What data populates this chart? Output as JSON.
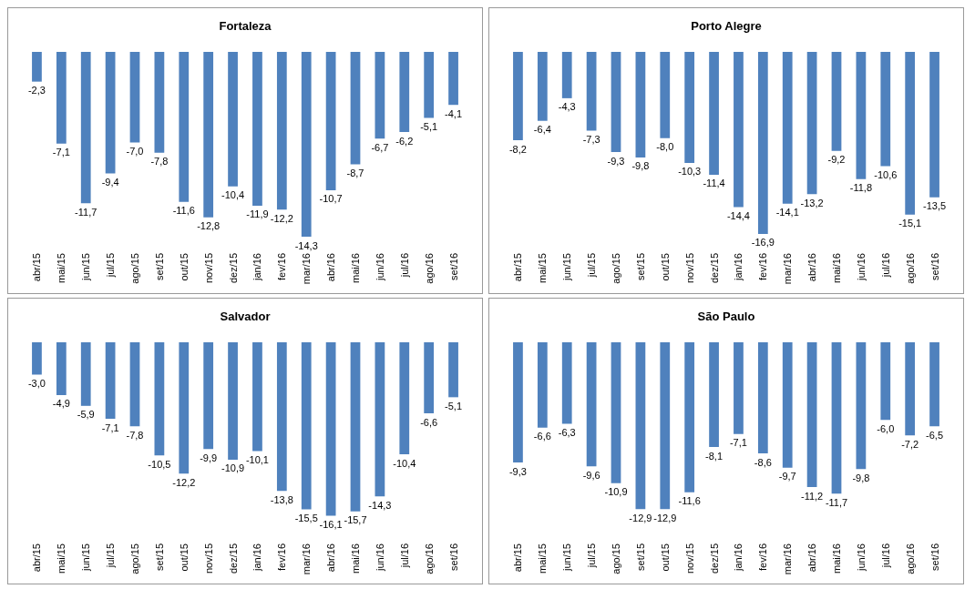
{
  "chart_data": [
    {
      "type": "bar",
      "title": "Fortaleza",
      "categories": [
        "abr/15",
        "mai/15",
        "jun/15",
        "jul/15",
        "ago/15",
        "set/15",
        "out/15",
        "nov/15",
        "dez/15",
        "jan/16",
        "fev/16",
        "mar/16",
        "abr/16",
        "mai/16",
        "jun/16",
        "jul/16",
        "ago/16",
        "set/16"
      ],
      "values": [
        -2.3,
        -7.1,
        -11.7,
        -9.4,
        -7.0,
        -7.8,
        -11.6,
        -12.8,
        -10.4,
        -11.9,
        -12.2,
        -14.3,
        -10.7,
        -8.7,
        -6.7,
        -6.2,
        -5.1,
        -4.1
      ],
      "value_labels": [
        "-2,3",
        "-7,1",
        "-11,7",
        "-9,4",
        "-7,0",
        "-7,8",
        "-11,6",
        "-12,8",
        "-10,4",
        "-11,9",
        "-12,2",
        "-14,3",
        "-10,7",
        "-8,7",
        "-6,7",
        "-6,2",
        "-5,1",
        "-4,1"
      ],
      "color": "#4f81bd",
      "tick_labels": "x"
    },
    {
      "type": "bar",
      "title": "Porto Alegre",
      "categories": [
        "abr/15",
        "mai/15",
        "jun/15",
        "jul/15",
        "ago/15",
        "set/15",
        "out/15",
        "nov/15",
        "dez/15",
        "jan/16",
        "fev/16",
        "mar/16",
        "abr/16",
        "mai/16",
        "jun/16",
        "jul/16",
        "ago/16",
        "set/16"
      ],
      "values": [
        -8.2,
        -6.4,
        -4.3,
        -7.3,
        -9.3,
        -9.8,
        -8.0,
        -10.3,
        -11.4,
        -14.4,
        -16.9,
        -14.1,
        -13.2,
        -9.2,
        -11.8,
        -10.6,
        -15.1,
        -13.5
      ],
      "value_labels": [
        "-8,2",
        "-6,4",
        "-4,3",
        "-7,3",
        "-9,3",
        "-9,8",
        "-8,0",
        "-10,3",
        "-11,4",
        "-14,4",
        "-16,9",
        "-14,1",
        "-13,2",
        "-9,2",
        "-11,8",
        "-10,6",
        "-15,1",
        "-13,5"
      ],
      "color": "#4f81bd",
      "tick_labels": "x"
    },
    {
      "type": "bar",
      "title": "Salvador",
      "categories": [
        "abr/15",
        "mai/15",
        "jun/15",
        "jul/15",
        "ago/15",
        "set/15",
        "out/15",
        "nov/15",
        "dez/15",
        "jan/16",
        "fev/16",
        "mar/16",
        "abr/16",
        "mai/16",
        "jun/16",
        "jul/16",
        "ago/16",
        "set/16"
      ],
      "values": [
        -3.0,
        -4.9,
        -5.9,
        -7.1,
        -7.8,
        -10.5,
        -12.2,
        -9.9,
        -10.9,
        -10.1,
        -13.8,
        -15.5,
        -16.1,
        -15.7,
        -14.3,
        -10.4,
        -6.6,
        -5.1
      ],
      "value_labels": [
        "-3,0",
        "-4,9",
        "-5,9",
        "-7,1",
        "-7,8",
        "-10,5",
        "-12,2",
        "-9,9",
        "-10,9",
        "-10,1",
        "-13,8",
        "-15,5",
        "-16,1",
        "-15,7",
        "-14,3",
        "-10,4",
        "-6,6",
        "-5,1"
      ],
      "color": "#4f81bd",
      "tick_labels": "x"
    },
    {
      "type": "bar",
      "title": "São Paulo",
      "categories": [
        "abr/15",
        "mai/15",
        "jun/15",
        "jul/15",
        "ago/15",
        "set/15",
        "out/15",
        "nov/15",
        "dez/15",
        "jan/16",
        "fev/16",
        "mar/16",
        "abr/16",
        "mai/16",
        "jun/16",
        "jul/16",
        "ago/16",
        "set/16"
      ],
      "values": [
        -9.3,
        -6.6,
        -6.3,
        -9.6,
        -10.9,
        -12.9,
        -12.9,
        -11.6,
        -8.1,
        -7.1,
        -8.6,
        -9.7,
        -11.2,
        -11.7,
        -9.8,
        -6.0,
        -7.2,
        -6.5
      ],
      "value_labels": [
        "-9,3",
        "-6,6",
        "-6,3",
        "-9,6",
        "-10,9",
        "-12,9",
        "-12,9",
        "-11,6",
        "-8,1",
        "-7,1",
        "-8,6",
        "-9,7",
        "-11,2",
        "-11,7",
        "-9,8",
        "-6,0",
        "-7,2",
        "-6,5"
      ],
      "color": "#4f81bd",
      "tick_labels": "x"
    }
  ]
}
